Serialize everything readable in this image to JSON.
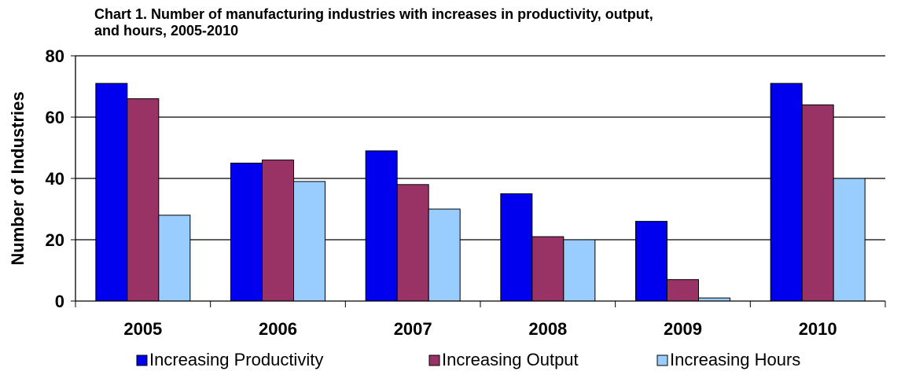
{
  "chart_data": {
    "type": "bar",
    "title": "Chart 1.  Number of manufacturing industries with increases in productivity, output,\nand hours, 2005-2010",
    "xlabel": "",
    "ylabel": "Number of Industries",
    "ylim": [
      0,
      80
    ],
    "yticks": [
      "0",
      "20",
      "40",
      "60",
      "80"
    ],
    "grid": true,
    "legend_position": "bottom",
    "categories": [
      "2005",
      "2006",
      "2007",
      "2008",
      "2009",
      "2010"
    ],
    "series": [
      {
        "name": "Increasing Productivity",
        "color": "#0000ee",
        "values": [
          71,
          45,
          49,
          35,
          26,
          71
        ]
      },
      {
        "name": "Increasing Output",
        "color": "#993366",
        "values": [
          66,
          46,
          38,
          21,
          7,
          64
        ]
      },
      {
        "name": "Increasing Hours",
        "color": "#99ccff",
        "values": [
          28,
          39,
          30,
          20,
          1,
          40
        ]
      }
    ]
  }
}
